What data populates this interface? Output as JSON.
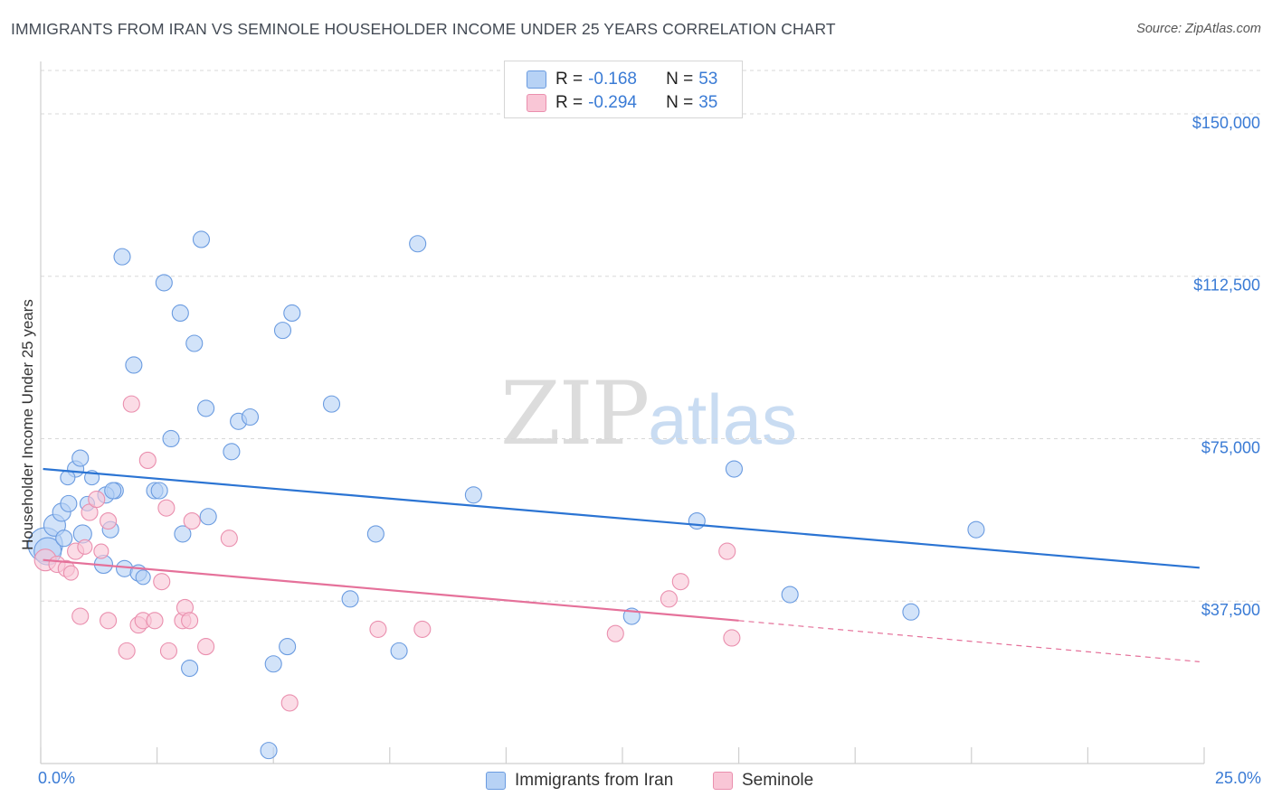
{
  "header": {
    "title": "IMMIGRANTS FROM IRAN VS SEMINOLE HOUSEHOLDER INCOME UNDER 25 YEARS CORRELATION CHART",
    "source": "Source: ZipAtlas.com"
  },
  "watermark": {
    "zip": "ZIP",
    "atlas": "atlas"
  },
  "legend": {
    "items": [
      {
        "r_label": "R =",
        "r_value": "-0.168",
        "n_label": "N =",
        "n_value": "53"
      },
      {
        "r_label": "R =",
        "r_value": "-0.294",
        "n_label": "N =",
        "n_value": "35"
      }
    ]
  },
  "bottom_legend": {
    "series1": "Immigrants from Iran",
    "series2": "Seminole"
  },
  "colors": {
    "blue_fill": "#b7d2f5",
    "blue_stroke": "#6a9be0",
    "blue_line": "#2b74d3",
    "pink_fill": "#f9c6d6",
    "pink_stroke": "#ea8fae",
    "pink_line": "#e5719a",
    "accent_text": "#3a7bd5",
    "grid": "#d8d8d8"
  },
  "chart_data": {
    "type": "scatter",
    "title": "IMMIGRANTS FROM IRAN VS SEMINOLE HOUSEHOLDER INCOME UNDER 25 YEARS CORRELATION CHART",
    "xlabel": "",
    "ylabel": "Householder Income Under 25 years",
    "xlim": [
      0,
      25
    ],
    "ylim": [
      0,
      160000
    ],
    "x_tick_labels": [
      "0.0%",
      "25.0%"
    ],
    "y_ticks": [
      37500,
      75000,
      112500,
      150000
    ],
    "y_tick_labels": [
      "$37,500",
      "$75,000",
      "$112,500",
      "$150,000"
    ],
    "grid": true,
    "legend_position": "top-center",
    "series": [
      {
        "name": "Immigrants from Iran",
        "r": -0.168,
        "n": 53,
        "trend": {
          "x0": 0.05,
          "y0": 68000,
          "x1": 24.9,
          "y1": 45200
        },
        "points": [
          [
            0.1,
            50500,
            19
          ],
          [
            0.15,
            49000,
            15
          ],
          [
            0.3,
            55000,
            12
          ],
          [
            0.45,
            58000,
            10
          ],
          [
            0.5,
            52000,
            9
          ],
          [
            0.6,
            60000,
            9
          ],
          [
            0.75,
            68000,
            9
          ],
          [
            0.9,
            53000,
            10
          ],
          [
            1.0,
            60000,
            8
          ],
          [
            1.1,
            66000,
            8
          ],
          [
            0.85,
            70500,
            9
          ],
          [
            0.58,
            66000,
            8
          ],
          [
            1.35,
            46000,
            10
          ],
          [
            1.5,
            54000,
            9
          ],
          [
            1.6,
            63000,
            9
          ],
          [
            1.8,
            45000,
            9
          ],
          [
            2.1,
            44000,
            9
          ],
          [
            2.2,
            43000,
            8
          ],
          [
            2.45,
            63000,
            9
          ],
          [
            1.75,
            117000,
            9
          ],
          [
            2.0,
            92000,
            9
          ],
          [
            2.65,
            111000,
            9
          ],
          [
            2.8,
            75000,
            9
          ],
          [
            3.0,
            104000,
            9
          ],
          [
            3.05,
            53000,
            9
          ],
          [
            3.3,
            97000,
            9
          ],
          [
            3.45,
            121000,
            9
          ],
          [
            3.6,
            57000,
            9
          ],
          [
            3.55,
            82000,
            9
          ],
          [
            4.1,
            72000,
            9
          ],
          [
            4.25,
            79000,
            9
          ],
          [
            4.5,
            80000,
            9
          ],
          [
            5.2,
            100000,
            9
          ],
          [
            5.4,
            104000,
            9
          ],
          [
            5.3,
            27000,
            9
          ],
          [
            5.0,
            23000,
            9
          ],
          [
            4.9,
            3000,
            9
          ],
          [
            6.25,
            83000,
            9
          ],
          [
            6.65,
            38000,
            9
          ],
          [
            7.2,
            53000,
            9
          ],
          [
            7.7,
            26000,
            9
          ],
          [
            8.1,
            120000,
            9
          ],
          [
            9.3,
            62000,
            9
          ],
          [
            2.55,
            63000,
            9
          ],
          [
            12.7,
            34000,
            9
          ],
          [
            14.1,
            56000,
            9
          ],
          [
            14.9,
            68000,
            9
          ],
          [
            16.1,
            39000,
            9
          ],
          [
            18.7,
            35000,
            9
          ],
          [
            20.1,
            54000,
            9
          ],
          [
            3.2,
            22000,
            9
          ],
          [
            1.4,
            62000,
            9
          ],
          [
            1.55,
            63000,
            9
          ]
        ]
      },
      {
        "name": "Seminole",
        "r": -0.294,
        "n": 35,
        "trend": {
          "x0": 0.05,
          "y0": 47000,
          "x1": 15.0,
          "y1": 33000
        },
        "trend_dashed": {
          "x0": 15.0,
          "y0": 33000,
          "x1": 24.9,
          "y1": 23500
        },
        "points": [
          [
            0.1,
            47000,
            12
          ],
          [
            0.35,
            46000,
            9
          ],
          [
            0.55,
            45000,
            9
          ],
          [
            0.65,
            44000,
            8
          ],
          [
            0.75,
            49000,
            9
          ],
          [
            0.85,
            34000,
            9
          ],
          [
            1.05,
            58000,
            9
          ],
          [
            1.2,
            61000,
            9
          ],
          [
            1.3,
            49000,
            8
          ],
          [
            1.45,
            56000,
            9
          ],
          [
            1.45,
            33000,
            9
          ],
          [
            1.85,
            26000,
            9
          ],
          [
            1.95,
            83000,
            9
          ],
          [
            2.1,
            32000,
            9
          ],
          [
            2.2,
            33000,
            9
          ],
          [
            2.3,
            70000,
            9
          ],
          [
            2.45,
            33000,
            9
          ],
          [
            2.6,
            42000,
            9
          ],
          [
            2.7,
            59000,
            9
          ],
          [
            2.75,
            26000,
            9
          ],
          [
            3.05,
            33000,
            9
          ],
          [
            3.1,
            36000,
            9
          ],
          [
            3.2,
            33000,
            9
          ],
          [
            3.25,
            56000,
            9
          ],
          [
            3.55,
            27000,
            9
          ],
          [
            4.05,
            52000,
            9
          ],
          [
            5.35,
            14000,
            9
          ],
          [
            7.25,
            31000,
            9
          ],
          [
            8.2,
            31000,
            9
          ],
          [
            12.35,
            30000,
            9
          ],
          [
            13.5,
            38000,
            9
          ],
          [
            13.75,
            42000,
            9
          ],
          [
            14.75,
            49000,
            9
          ],
          [
            14.85,
            29000,
            9
          ],
          [
            0.95,
            50000,
            8
          ]
        ]
      }
    ]
  }
}
